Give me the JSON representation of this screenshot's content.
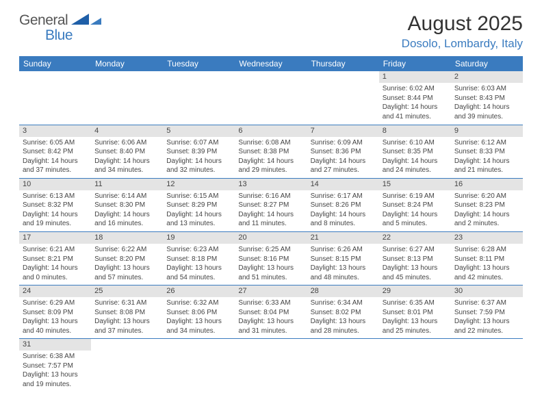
{
  "logo": {
    "general": "General",
    "blue": "Blue"
  },
  "title": {
    "month": "August 2025",
    "location": "Dosolo, Lombardy, Italy"
  },
  "colors": {
    "header_bg": "#3a7bbf",
    "header_text": "#ffffff",
    "daynum_bg": "#e4e4e4",
    "border": "#3a7bbf",
    "logo_blue": "#3a7bbf",
    "body_text": "#444444"
  },
  "weekdays": [
    "Sunday",
    "Monday",
    "Tuesday",
    "Wednesday",
    "Thursday",
    "Friday",
    "Saturday"
  ],
  "first_weekday_index": 5,
  "days": [
    {
      "n": 1,
      "sunrise": "6:02 AM",
      "sunset": "8:44 PM",
      "daylight": "14 hours and 41 minutes."
    },
    {
      "n": 2,
      "sunrise": "6:03 AM",
      "sunset": "8:43 PM",
      "daylight": "14 hours and 39 minutes."
    },
    {
      "n": 3,
      "sunrise": "6:05 AM",
      "sunset": "8:42 PM",
      "daylight": "14 hours and 37 minutes."
    },
    {
      "n": 4,
      "sunrise": "6:06 AM",
      "sunset": "8:40 PM",
      "daylight": "14 hours and 34 minutes."
    },
    {
      "n": 5,
      "sunrise": "6:07 AM",
      "sunset": "8:39 PM",
      "daylight": "14 hours and 32 minutes."
    },
    {
      "n": 6,
      "sunrise": "6:08 AM",
      "sunset": "8:38 PM",
      "daylight": "14 hours and 29 minutes."
    },
    {
      "n": 7,
      "sunrise": "6:09 AM",
      "sunset": "8:36 PM",
      "daylight": "14 hours and 27 minutes."
    },
    {
      "n": 8,
      "sunrise": "6:10 AM",
      "sunset": "8:35 PM",
      "daylight": "14 hours and 24 minutes."
    },
    {
      "n": 9,
      "sunrise": "6:12 AM",
      "sunset": "8:33 PM",
      "daylight": "14 hours and 21 minutes."
    },
    {
      "n": 10,
      "sunrise": "6:13 AM",
      "sunset": "8:32 PM",
      "daylight": "14 hours and 19 minutes."
    },
    {
      "n": 11,
      "sunrise": "6:14 AM",
      "sunset": "8:30 PM",
      "daylight": "14 hours and 16 minutes."
    },
    {
      "n": 12,
      "sunrise": "6:15 AM",
      "sunset": "8:29 PM",
      "daylight": "14 hours and 13 minutes."
    },
    {
      "n": 13,
      "sunrise": "6:16 AM",
      "sunset": "8:27 PM",
      "daylight": "14 hours and 11 minutes."
    },
    {
      "n": 14,
      "sunrise": "6:17 AM",
      "sunset": "8:26 PM",
      "daylight": "14 hours and 8 minutes."
    },
    {
      "n": 15,
      "sunrise": "6:19 AM",
      "sunset": "8:24 PM",
      "daylight": "14 hours and 5 minutes."
    },
    {
      "n": 16,
      "sunrise": "6:20 AM",
      "sunset": "8:23 PM",
      "daylight": "14 hours and 2 minutes."
    },
    {
      "n": 17,
      "sunrise": "6:21 AM",
      "sunset": "8:21 PM",
      "daylight": "14 hours and 0 minutes."
    },
    {
      "n": 18,
      "sunrise": "6:22 AM",
      "sunset": "8:20 PM",
      "daylight": "13 hours and 57 minutes."
    },
    {
      "n": 19,
      "sunrise": "6:23 AM",
      "sunset": "8:18 PM",
      "daylight": "13 hours and 54 minutes."
    },
    {
      "n": 20,
      "sunrise": "6:25 AM",
      "sunset": "8:16 PM",
      "daylight": "13 hours and 51 minutes."
    },
    {
      "n": 21,
      "sunrise": "6:26 AM",
      "sunset": "8:15 PM",
      "daylight": "13 hours and 48 minutes."
    },
    {
      "n": 22,
      "sunrise": "6:27 AM",
      "sunset": "8:13 PM",
      "daylight": "13 hours and 45 minutes."
    },
    {
      "n": 23,
      "sunrise": "6:28 AM",
      "sunset": "8:11 PM",
      "daylight": "13 hours and 42 minutes."
    },
    {
      "n": 24,
      "sunrise": "6:29 AM",
      "sunset": "8:09 PM",
      "daylight": "13 hours and 40 minutes."
    },
    {
      "n": 25,
      "sunrise": "6:31 AM",
      "sunset": "8:08 PM",
      "daylight": "13 hours and 37 minutes."
    },
    {
      "n": 26,
      "sunrise": "6:32 AM",
      "sunset": "8:06 PM",
      "daylight": "13 hours and 34 minutes."
    },
    {
      "n": 27,
      "sunrise": "6:33 AM",
      "sunset": "8:04 PM",
      "daylight": "13 hours and 31 minutes."
    },
    {
      "n": 28,
      "sunrise": "6:34 AM",
      "sunset": "8:02 PM",
      "daylight": "13 hours and 28 minutes."
    },
    {
      "n": 29,
      "sunrise": "6:35 AM",
      "sunset": "8:01 PM",
      "daylight": "13 hours and 25 minutes."
    },
    {
      "n": 30,
      "sunrise": "6:37 AM",
      "sunset": "7:59 PM",
      "daylight": "13 hours and 22 minutes."
    },
    {
      "n": 31,
      "sunrise": "6:38 AM",
      "sunset": "7:57 PM",
      "daylight": "13 hours and 19 minutes."
    }
  ],
  "labels": {
    "sunrise": "Sunrise:",
    "sunset": "Sunset:",
    "daylight": "Daylight:"
  }
}
